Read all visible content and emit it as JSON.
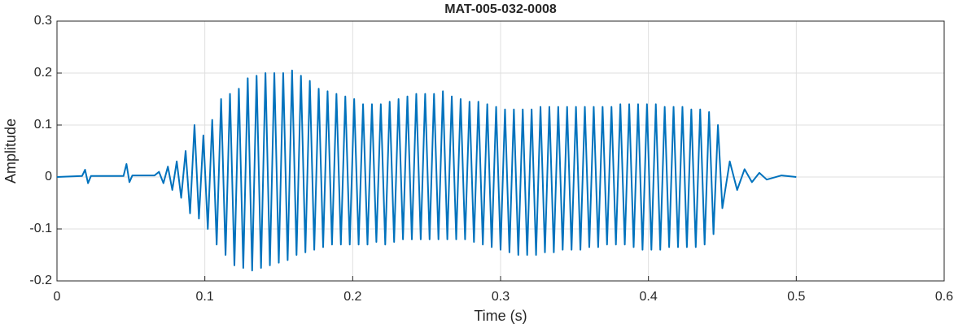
{
  "chart_data": {
    "type": "line",
    "title": "MAT-005-032-0008",
    "xlabel": "Time (s)",
    "ylabel": "Amplitude",
    "xlim": [
      0,
      0.6
    ],
    "ylim": [
      -0.2,
      0.3
    ],
    "xticks": [
      0,
      0.1,
      0.2,
      0.3,
      0.4,
      0.5,
      0.6
    ],
    "yticks": [
      {
        "value": -0.2,
        "label": "-0.2"
      },
      {
        "value": -0.1,
        "label": "-0.1"
      },
      0,
      0.1,
      0.2,
      0.3
    ],
    "grid": true,
    "x": [
      0,
      0.017,
      0.019,
      0.021,
      0.023,
      0.045,
      0.047,
      0.049,
      0.051,
      0.066,
      0.069,
      0.072,
      0.075,
      0.078,
      0.081,
      0.084,
      0.087,
      0.09,
      0.093,
      0.096,
      0.099,
      0.102,
      0.105,
      0.108,
      0.111,
      0.114,
      0.117,
      0.12,
      0.123,
      0.126,
      0.129,
      0.132,
      0.135,
      0.138,
      0.141,
      0.144,
      0.147,
      0.15,
      0.153,
      0.156,
      0.159,
      0.162,
      0.165,
      0.168,
      0.171,
      0.174,
      0.177,
      0.18,
      0.183,
      0.186,
      0.189,
      0.192,
      0.195,
      0.198,
      0.201,
      0.204,
      0.207,
      0.21,
      0.213,
      0.216,
      0.219,
      0.222,
      0.225,
      0.228,
      0.231,
      0.234,
      0.237,
      0.24,
      0.243,
      0.246,
      0.249,
      0.252,
      0.255,
      0.258,
      0.261,
      0.264,
      0.267,
      0.27,
      0.273,
      0.276,
      0.279,
      0.282,
      0.285,
      0.288,
      0.291,
      0.294,
      0.297,
      0.3,
      0.303,
      0.306,
      0.309,
      0.312,
      0.315,
      0.318,
      0.321,
      0.324,
      0.327,
      0.33,
      0.333,
      0.336,
      0.339,
      0.342,
      0.345,
      0.348,
      0.351,
      0.354,
      0.357,
      0.36,
      0.363,
      0.366,
      0.369,
      0.372,
      0.375,
      0.378,
      0.381,
      0.384,
      0.387,
      0.39,
      0.393,
      0.396,
      0.399,
      0.402,
      0.405,
      0.408,
      0.411,
      0.414,
      0.417,
      0.42,
      0.423,
      0.426,
      0.429,
      0.432,
      0.435,
      0.438,
      0.441,
      0.444,
      0.447,
      0.45,
      0.455,
      0.46,
      0.465,
      0.47,
      0.475,
      0.48,
      0.49,
      0.5
    ],
    "series": [
      {
        "name": "Amplitude",
        "color": "#0072bd",
        "values": [
          0,
          0.002,
          0.014,
          -0.012,
          0.002,
          0.002,
          0.025,
          -0.01,
          0.003,
          0.003,
          0.01,
          -0.012,
          0.02,
          -0.025,
          0.03,
          -0.04,
          0.05,
          -0.07,
          0.1,
          -0.08,
          0.08,
          -0.1,
          0.11,
          -0.13,
          0.15,
          -0.15,
          0.16,
          -0.17,
          0.17,
          -0.175,
          0.19,
          -0.18,
          0.195,
          -0.175,
          0.2,
          -0.17,
          0.2,
          -0.165,
          0.2,
          -0.16,
          0.205,
          -0.15,
          0.195,
          -0.145,
          0.185,
          -0.14,
          0.17,
          -0.135,
          0.165,
          -0.13,
          0.16,
          -0.13,
          0.155,
          -0.13,
          0.15,
          -0.13,
          0.14,
          -0.13,
          0.14,
          -0.125,
          0.14,
          -0.13,
          0.145,
          -0.125,
          0.15,
          -0.12,
          0.155,
          -0.12,
          0.16,
          -0.12,
          0.16,
          -0.12,
          0.16,
          -0.12,
          0.165,
          -0.12,
          0.155,
          -0.12,
          0.15,
          -0.12,
          0.145,
          -0.125,
          0.145,
          -0.13,
          0.14,
          -0.135,
          0.135,
          -0.14,
          0.13,
          -0.145,
          0.13,
          -0.15,
          0.13,
          -0.15,
          0.13,
          -0.15,
          0.135,
          -0.145,
          0.135,
          -0.145,
          0.135,
          -0.14,
          0.135,
          -0.14,
          0.135,
          -0.14,
          0.135,
          -0.135,
          0.135,
          -0.135,
          0.135,
          -0.13,
          0.135,
          -0.13,
          0.14,
          -0.13,
          0.14,
          -0.135,
          0.14,
          -0.14,
          0.14,
          -0.14,
          0.14,
          -0.14,
          0.135,
          -0.135,
          0.135,
          -0.135,
          0.135,
          -0.135,
          0.13,
          -0.135,
          0.13,
          -0.13,
          0.125,
          -0.11,
          0.1,
          -0.06,
          0.03,
          -0.025,
          0.015,
          -0.01,
          0.008,
          -0.005,
          0.003,
          0
        ]
      }
    ]
  }
}
